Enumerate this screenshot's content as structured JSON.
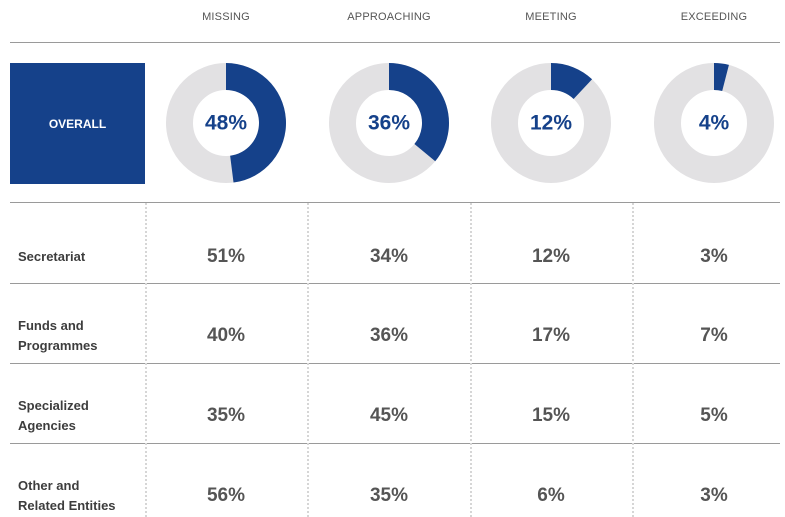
{
  "columns": [
    "MISSING",
    "APPROACHING",
    "MEETING",
    "EXCEEDING"
  ],
  "overall": {
    "label": "OVERALL",
    "values": [
      48,
      36,
      12,
      4
    ],
    "value_labels": [
      "48%",
      "36%",
      "12%",
      "4%"
    ]
  },
  "rows": [
    {
      "label": "Secretariat",
      "cells": [
        "51%",
        "34%",
        "12%",
        "3%"
      ]
    },
    {
      "label": "Funds and\nProgrammes",
      "cells": [
        "40%",
        "36%",
        "17%",
        "7%"
      ]
    },
    {
      "label": "Specialized\nAgencies",
      "cells": [
        "35%",
        "45%",
        "15%",
        "5%"
      ]
    },
    {
      "label": "Other and\nRelated Entities",
      "cells": [
        "56%",
        "35%",
        "6%",
        "3%"
      ]
    }
  ]
}
